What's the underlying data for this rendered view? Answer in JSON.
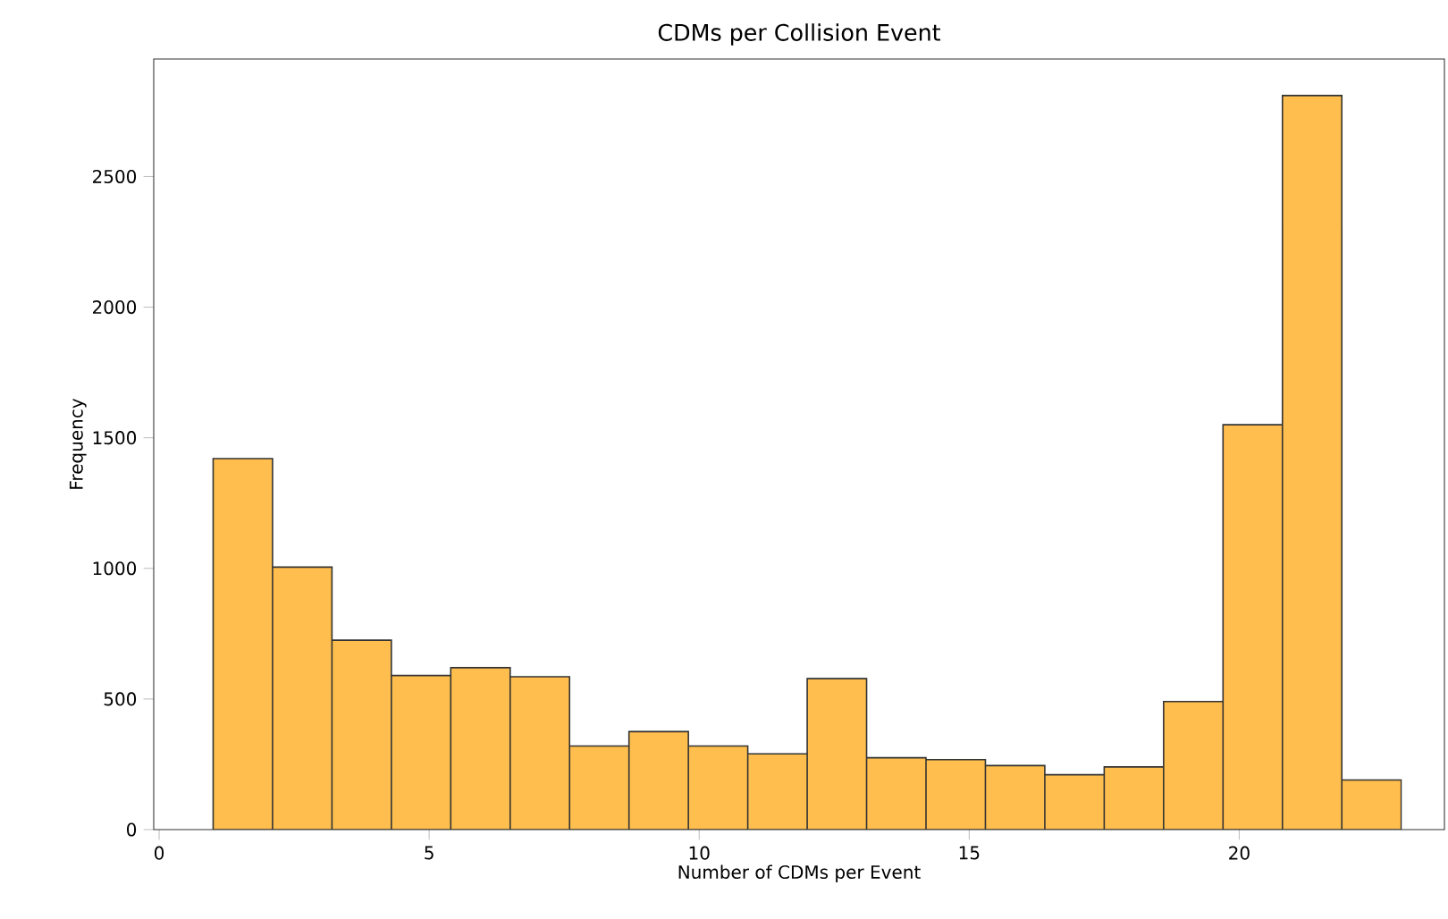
{
  "chart_data": {
    "type": "histogram",
    "title": "CDMs per Collision Event",
    "xlabel": "Number of CDMs per Event",
    "ylabel": "Frequency",
    "bins": [
      1,
      2.1,
      3.2,
      4.3,
      5.4,
      6.5,
      7.6,
      8.7,
      9.8,
      10.9,
      12,
      13.1,
      14.2,
      15.3,
      16.4,
      17.5,
      18.6,
      19.7,
      20.8,
      21.9,
      23
    ],
    "values": [
      1420,
      1005,
      725,
      590,
      620,
      585,
      320,
      375,
      320,
      290,
      578,
      275,
      268,
      245,
      210,
      240,
      490,
      1550,
      2810,
      190
    ],
    "color": "#ffbe4d",
    "xlim": [
      -0.1,
      23.8
    ],
    "ylim": [
      0,
      2950
    ],
    "xticks": [
      0,
      5,
      10,
      15,
      20
    ],
    "yticks": [
      0,
      500,
      1000,
      1500,
      2000,
      2500
    ]
  }
}
